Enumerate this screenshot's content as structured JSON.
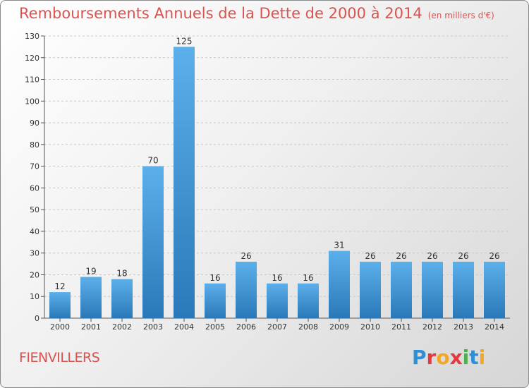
{
  "header": {
    "title": "Remboursements Annuels de la Dette de 2000 à 2014",
    "unit": "(en milliers d'€)"
  },
  "footer": {
    "commune": "FIENVILLERS",
    "logo": [
      "P",
      "r",
      "o",
      "x",
      "i",
      "t",
      "i"
    ]
  },
  "colors": {
    "title": "#d9534f",
    "bar_top": "#5cb0ea",
    "bar_bottom": "#2a78b8",
    "logo": [
      "#2f8fd6",
      "#e8383d",
      "#f5a623",
      "#e8383d",
      "#4caf50",
      "#2f8fd6",
      "#f5a623"
    ]
  },
  "chart_data": {
    "type": "bar",
    "title": "Remboursements Annuels de la Dette de 2000 à 2014",
    "xlabel": "",
    "ylabel": "",
    "categories": [
      "2000",
      "2001",
      "2002",
      "2003",
      "2004",
      "2005",
      "2006",
      "2007",
      "2008",
      "2009",
      "2010",
      "2011",
      "2012",
      "2013",
      "2014"
    ],
    "values": [
      12,
      19,
      18,
      70,
      125,
      16,
      26,
      16,
      16,
      31,
      26,
      26,
      26,
      26,
      26
    ],
    "ylim": [
      0,
      130
    ],
    "yticks": [
      0,
      10,
      20,
      30,
      40,
      50,
      60,
      70,
      80,
      90,
      100,
      110,
      120,
      130
    ],
    "grid": true,
    "legend": "none"
  }
}
